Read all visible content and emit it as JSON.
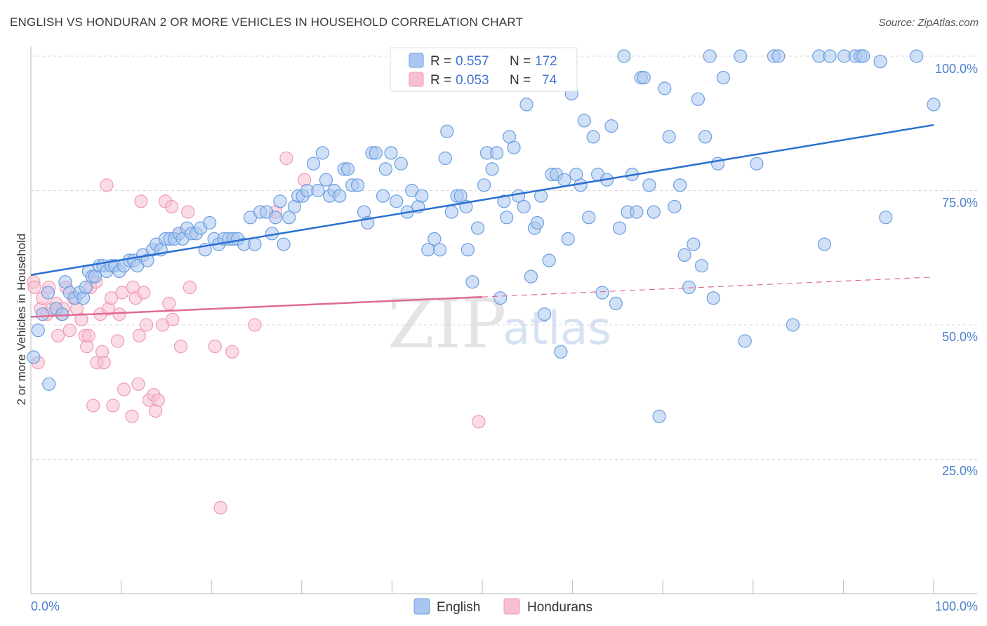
{
  "header": {
    "title": "ENGLISH VS HONDURAN 2 OR MORE VEHICLES IN HOUSEHOLD CORRELATION CHART",
    "source": "Source: ZipAtlas.com"
  },
  "watermark": {
    "zip": "ZIP",
    "atlas": "atlas"
  },
  "legend_top": {
    "rows": [
      {
        "r_label": "R =",
        "r_value": "0.557",
        "n_label": "N =",
        "n_value": "172"
      },
      {
        "r_label": "R =",
        "r_value": "0.053",
        "n_label": "N =",
        "n_value": "74"
      }
    ]
  },
  "legend_bottom": {
    "items": [
      "English",
      "Hondurans"
    ]
  },
  "colors": {
    "english_fill": "#a9c6f0",
    "english_stroke": "#6a9ee0",
    "english_line": "#2a6fd0",
    "honduran_fill": "#f7c0d0",
    "honduran_stroke": "#ef9ab5",
    "honduran_line": "#e06a92",
    "grid": "#d8d8d8",
    "tick_text": "#4a7fd0"
  },
  "chart_data": {
    "type": "scatter",
    "title": "ENGLISH VS HONDURAN 2 OR MORE VEHICLES IN HOUSEHOLD CORRELATION CHART",
    "xlabel": "",
    "ylabel": "2 or more Vehicles in Household",
    "xlim": [
      0,
      100
    ],
    "ylim": [
      0,
      102
    ],
    "x_tick_labels": [
      "0.0%",
      "100.0%"
    ],
    "y_tick_labels": [
      "100.0%",
      "75.0%",
      "50.0%",
      "25.0%"
    ],
    "y_ticks": [
      100,
      75,
      50,
      25
    ],
    "series": [
      {
        "name": "English",
        "r": 0.557,
        "n": 172,
        "trend": {
          "x": [
            0,
            100
          ],
          "y": [
            59.3,
            87.2
          ],
          "style": "solid"
        },
        "points": [
          [
            0.3,
            44
          ],
          [
            0.8,
            49
          ],
          [
            1.3,
            52
          ],
          [
            1.9,
            56
          ],
          [
            2.0,
            39
          ],
          [
            2.8,
            53
          ],
          [
            3.5,
            52
          ],
          [
            3.8,
            58
          ],
          [
            4.3,
            56
          ],
          [
            4.9,
            55
          ],
          [
            5.4,
            56
          ],
          [
            5.8,
            55
          ],
          [
            6.1,
            57
          ],
          [
            6.4,
            60
          ],
          [
            6.8,
            59
          ],
          [
            7.1,
            59
          ],
          [
            7.6,
            61
          ],
          [
            8.0,
            61
          ],
          [
            8.4,
            60
          ],
          [
            8.9,
            61
          ],
          [
            9.3,
            61
          ],
          [
            9.8,
            60
          ],
          [
            10.3,
            61
          ],
          [
            10.9,
            62
          ],
          [
            11.4,
            62
          ],
          [
            11.8,
            61
          ],
          [
            12.4,
            63
          ],
          [
            12.9,
            62
          ],
          [
            13.5,
            64
          ],
          [
            13.9,
            65
          ],
          [
            14.4,
            64
          ],
          [
            14.9,
            66
          ],
          [
            15.4,
            66
          ],
          [
            15.9,
            66
          ],
          [
            16.4,
            67
          ],
          [
            16.8,
            66
          ],
          [
            17.3,
            68
          ],
          [
            17.8,
            67
          ],
          [
            18.3,
            67
          ],
          [
            18.8,
            68
          ],
          [
            19.3,
            64
          ],
          [
            19.8,
            69
          ],
          [
            20.3,
            66
          ],
          [
            20.8,
            65
          ],
          [
            21.4,
            66
          ],
          [
            21.9,
            66
          ],
          [
            22.4,
            66
          ],
          [
            22.9,
            66
          ],
          [
            23.6,
            65
          ],
          [
            24.3,
            70
          ],
          [
            24.8,
            65
          ],
          [
            25.4,
            71
          ],
          [
            26.1,
            71
          ],
          [
            26.7,
            67
          ],
          [
            27.1,
            70
          ],
          [
            27.6,
            73
          ],
          [
            28.0,
            65
          ],
          [
            28.6,
            70
          ],
          [
            29.2,
            72
          ],
          [
            29.6,
            74
          ],
          [
            30.1,
            74
          ],
          [
            30.6,
            75
          ],
          [
            31.3,
            80
          ],
          [
            31.8,
            75
          ],
          [
            32.3,
            82
          ],
          [
            32.7,
            77
          ],
          [
            33.1,
            74
          ],
          [
            33.6,
            75
          ],
          [
            34.2,
            74
          ],
          [
            34.7,
            79
          ],
          [
            35.1,
            79
          ],
          [
            35.6,
            76
          ],
          [
            36.2,
            76
          ],
          [
            36.9,
            71
          ],
          [
            37.3,
            69
          ],
          [
            37.8,
            82
          ],
          [
            38.2,
            82
          ],
          [
            39.0,
            74
          ],
          [
            39.3,
            79
          ],
          [
            39.9,
            82
          ],
          [
            40.5,
            73
          ],
          [
            41.0,
            80
          ],
          [
            41.7,
            71
          ],
          [
            42.2,
            75
          ],
          [
            42.9,
            72
          ],
          [
            43.3,
            74
          ],
          [
            44.0,
            64
          ],
          [
            44.7,
            66
          ],
          [
            45.3,
            64
          ],
          [
            45.9,
            81
          ],
          [
            46.1,
            86
          ],
          [
            46.6,
            71
          ],
          [
            47.2,
            74
          ],
          [
            47.6,
            74
          ],
          [
            48.2,
            72
          ],
          [
            48.4,
            64
          ],
          [
            48.9,
            58
          ],
          [
            49.5,
            68
          ],
          [
            50.2,
            76
          ],
          [
            50.5,
            82
          ],
          [
            51.1,
            79
          ],
          [
            51.6,
            82
          ],
          [
            52.0,
            55
          ],
          [
            52.4,
            73
          ],
          [
            52.7,
            70
          ],
          [
            53.0,
            85
          ],
          [
            53.5,
            83
          ],
          [
            54.0,
            74
          ],
          [
            54.6,
            72
          ],
          [
            54.9,
            91
          ],
          [
            55.4,
            59
          ],
          [
            55.8,
            68
          ],
          [
            56.1,
            69
          ],
          [
            56.5,
            74
          ],
          [
            56.9,
            52
          ],
          [
            57.4,
            62
          ],
          [
            57.7,
            78
          ],
          [
            58.2,
            78
          ],
          [
            58.7,
            45
          ],
          [
            59.1,
            77
          ],
          [
            59.5,
            66
          ],
          [
            59.9,
            93
          ],
          [
            60.4,
            78
          ],
          [
            60.9,
            76
          ],
          [
            61.3,
            88
          ],
          [
            61.8,
            70
          ],
          [
            62.3,
            85
          ],
          [
            62.8,
            78
          ],
          [
            63.3,
            56
          ],
          [
            63.8,
            77
          ],
          [
            64.3,
            87
          ],
          [
            64.8,
            54
          ],
          [
            65.2,
            68
          ],
          [
            65.7,
            100
          ],
          [
            66.1,
            71
          ],
          [
            66.6,
            78
          ],
          [
            67.1,
            71
          ],
          [
            67.6,
            96
          ],
          [
            67.9,
            96
          ],
          [
            68.5,
            76
          ],
          [
            69.0,
            71
          ],
          [
            69.6,
            33
          ],
          [
            70.2,
            94
          ],
          [
            70.7,
            85
          ],
          [
            71.3,
            72
          ],
          [
            71.9,
            76
          ],
          [
            72.4,
            63
          ],
          [
            72.9,
            57
          ],
          [
            73.4,
            65
          ],
          [
            73.9,
            92
          ],
          [
            74.3,
            61
          ],
          [
            74.7,
            85
          ],
          [
            75.2,
            100
          ],
          [
            75.6,
            55
          ],
          [
            76.1,
            80
          ],
          [
            76.7,
            96
          ],
          [
            78.6,
            100
          ],
          [
            79.1,
            47
          ],
          [
            80.4,
            80
          ],
          [
            82.3,
            100
          ],
          [
            82.8,
            100
          ],
          [
            84.4,
            50
          ],
          [
            87.3,
            100
          ],
          [
            87.9,
            65
          ],
          [
            88.5,
            100
          ],
          [
            90.1,
            100
          ],
          [
            91.3,
            100
          ],
          [
            91.9,
            100
          ],
          [
            92.2,
            100
          ],
          [
            94.1,
            99
          ],
          [
            94.7,
            70
          ],
          [
            98.1,
            100
          ],
          [
            100.0,
            91
          ]
        ]
      },
      {
        "name": "Hondurans",
        "r": 0.053,
        "n": 74,
        "trend": {
          "x": [
            0,
            50
          ],
          "y": [
            51.5,
            55.2
          ],
          "style": "solid",
          "dash_extension": {
            "x": [
              50,
              100
            ],
            "y": [
              55.2,
              58.9
            ]
          }
        },
        "points": [
          [
            0.3,
            58
          ],
          [
            0.4,
            57
          ],
          [
            0.8,
            43
          ],
          [
            1.1,
            53
          ],
          [
            1.3,
            55
          ],
          [
            1.8,
            52
          ],
          [
            2.0,
            57
          ],
          [
            2.3,
            53
          ],
          [
            2.8,
            54
          ],
          [
            3.0,
            48
          ],
          [
            3.4,
            52
          ],
          [
            3.6,
            53
          ],
          [
            3.9,
            57
          ],
          [
            4.3,
            49
          ],
          [
            4.7,
            55
          ],
          [
            5.1,
            53
          ],
          [
            5.6,
            51
          ],
          [
            6.0,
            48
          ],
          [
            6.2,
            46
          ],
          [
            6.4,
            48
          ],
          [
            6.6,
            57
          ],
          [
            6.9,
            35
          ],
          [
            7.2,
            58
          ],
          [
            7.3,
            43
          ],
          [
            7.7,
            52
          ],
          [
            7.9,
            45
          ],
          [
            8.1,
            43
          ],
          [
            8.4,
            76
          ],
          [
            8.6,
            53
          ],
          [
            8.9,
            55
          ],
          [
            9.1,
            35
          ],
          [
            9.6,
            47
          ],
          [
            9.8,
            52
          ],
          [
            10.1,
            56
          ],
          [
            10.3,
            38
          ],
          [
            11.2,
            33
          ],
          [
            11.3,
            57
          ],
          [
            11.6,
            55
          ],
          [
            11.9,
            39
          ],
          [
            12.0,
            48
          ],
          [
            12.2,
            73
          ],
          [
            12.5,
            56
          ],
          [
            12.8,
            50
          ],
          [
            13.1,
            36
          ],
          [
            13.6,
            37
          ],
          [
            13.8,
            34
          ],
          [
            14.1,
            36
          ],
          [
            14.6,
            50
          ],
          [
            14.9,
            73
          ],
          [
            15.3,
            54
          ],
          [
            15.6,
            72
          ],
          [
            15.7,
            51
          ],
          [
            16.4,
            67
          ],
          [
            16.6,
            46
          ],
          [
            17.4,
            71
          ],
          [
            17.6,
            57
          ],
          [
            20.4,
            46
          ],
          [
            21.0,
            16
          ],
          [
            22.3,
            45
          ],
          [
            24.8,
            50
          ],
          [
            27.1,
            71
          ],
          [
            28.3,
            81
          ],
          [
            30.3,
            77
          ],
          [
            49.6,
            32
          ]
        ]
      }
    ]
  }
}
